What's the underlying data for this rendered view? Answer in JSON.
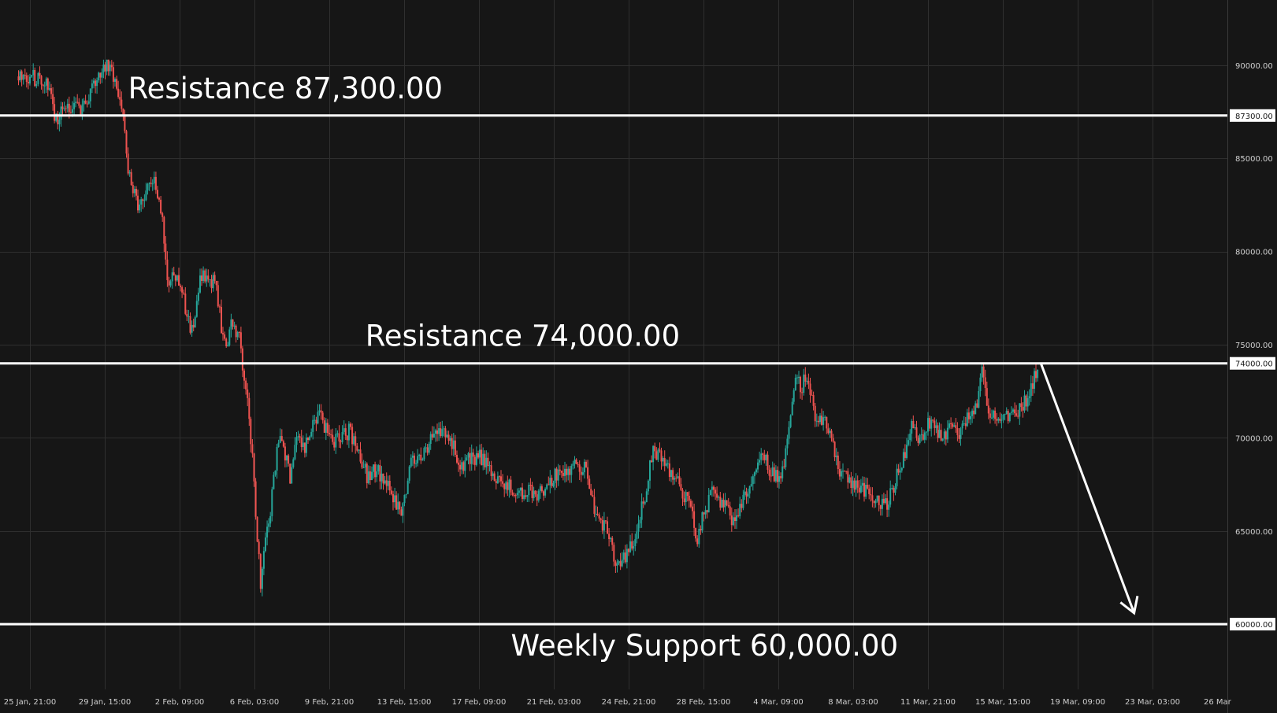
{
  "colors": {
    "background": "#161616",
    "grid": "#2f2f2f",
    "axis_text": "#cfcfcf",
    "up_candle": "#26a69a",
    "down_candle": "#ef5350",
    "level_line": "#ffffff",
    "arrow": "#ffffff"
  },
  "chart_data": {
    "type": "candlestick",
    "grid": true,
    "legend": "none",
    "ylim": [
      56500,
      93500
    ],
    "xlim": [
      "2024-01-25 21:00",
      "2024-03-26 21:00"
    ],
    "x_ticks": [
      "25 Jan, 21:00",
      "29 Jan, 15:00",
      "2 Feb, 09:00",
      "6 Feb, 03:00",
      "9 Feb, 21:00",
      "13 Feb, 15:00",
      "17 Feb, 09:00",
      "21 Feb, 03:00",
      "24 Feb, 21:00",
      "28 Feb, 15:00",
      "4 Mar, 09:00",
      "8 Mar, 03:00",
      "11 Mar, 21:00",
      "15 Mar, 15:00",
      "19 Mar, 09:00",
      "23 Mar, 03:00",
      "26 Mar"
    ],
    "y_ticks": [
      {
        "value": 90000,
        "label": "90000.00"
      },
      {
        "value": 85000,
        "label": "85000.00"
      },
      {
        "value": 80000,
        "label": "80000.00"
      },
      {
        "value": 75000,
        "label": "75000.00"
      },
      {
        "value": 70000,
        "label": "70000.00"
      },
      {
        "value": 65000,
        "label": "65000.00"
      }
    ],
    "levels": [
      {
        "value": 87300,
        "tag": "87300.00",
        "annotation": "Resistance 87,300.00",
        "annotation_at": "2024-01-30 21:00"
      },
      {
        "value": 74000,
        "tag": "74000.00",
        "annotation": "Resistance 74,000.00",
        "annotation_at": "2024-02-11 23:00"
      },
      {
        "value": 60000,
        "tag": "60000.00",
        "annotation": "Weekly Support 60,000.00",
        "annotation_at": "2024-02-19 09:00"
      }
    ],
    "price_path": [
      [
        "2024-01-25 21:00",
        89400
      ],
      [
        "2024-01-26 21:00",
        89000
      ],
      [
        "2024-01-27 03:00",
        86800
      ],
      [
        "2024-01-27 15:00",
        87900
      ],
      [
        "2024-01-28 12:00",
        87500
      ],
      [
        "2024-01-29 00:00",
        88600
      ],
      [
        "2024-01-29 12:00",
        89500
      ],
      [
        "2024-01-29 18:00",
        90200
      ],
      [
        "2024-01-30 06:00",
        89300
      ],
      [
        "2024-01-30 15:00",
        87600
      ],
      [
        "2024-01-30 21:00",
        84500
      ],
      [
        "2024-01-31 03:00",
        83300
      ],
      [
        "2024-01-31 12:00",
        82200
      ],
      [
        "2024-01-31 21:00",
        83800
      ],
      [
        "2024-02-01 06:00",
        83600
      ],
      [
        "2024-02-01 15:00",
        82000
      ],
      [
        "2024-02-01 21:00",
        78500
      ],
      [
        "2024-02-02 06:00",
        78800
      ],
      [
        "2024-02-02 15:00",
        77900
      ],
      [
        "2024-02-02 21:00",
        76600
      ],
      [
        "2024-02-03 03:00",
        75700
      ],
      [
        "2024-02-03 12:00",
        78300
      ],
      [
        "2024-02-03 21:00",
        78900
      ],
      [
        "2024-02-04 09:00",
        78000
      ],
      [
        "2024-02-04 15:00",
        76000
      ],
      [
        "2024-02-04 21:00",
        74500
      ],
      [
        "2024-02-05 03:00",
        76200
      ],
      [
        "2024-02-05 12:00",
        75600
      ],
      [
        "2024-02-05 18:00",
        73500
      ],
      [
        "2024-02-06 00:00",
        71500
      ],
      [
        "2024-02-06 06:00",
        68500
      ],
      [
        "2024-02-06 09:00",
        66000
      ],
      [
        "2024-02-06 15:00",
        62000
      ],
      [
        "2024-02-06 21:00",
        64500
      ],
      [
        "2024-02-07 03:00",
        66000
      ],
      [
        "2024-02-07 09:00",
        68500
      ],
      [
        "2024-02-07 15:00",
        70500
      ],
      [
        "2024-02-07 21:00",
        69000
      ],
      [
        "2024-02-08 03:00",
        68000
      ],
      [
        "2024-02-08 12:00",
        70000
      ],
      [
        "2024-02-08 21:00",
        69600
      ],
      [
        "2024-02-09 06:00",
        70600
      ],
      [
        "2024-02-09 15:00",
        71200
      ],
      [
        "2024-02-10 06:00",
        70000
      ],
      [
        "2024-02-10 15:00",
        69800
      ],
      [
        "2024-02-11 03:00",
        70400
      ],
      [
        "2024-02-11 15:00",
        69000
      ],
      [
        "2024-02-12 03:00",
        67800
      ],
      [
        "2024-02-12 12:00",
        68300
      ],
      [
        "2024-02-13 00:00",
        67500
      ],
      [
        "2024-02-13 12:00",
        66500
      ],
      [
        "2024-02-13 21:00",
        66200
      ],
      [
        "2024-02-14 06:00",
        68500
      ],
      [
        "2024-02-14 21:00",
        69000
      ],
      [
        "2024-02-15 09:00",
        70000
      ],
      [
        "2024-02-15 21:00",
        70400
      ],
      [
        "2024-02-16 09:00",
        69800
      ],
      [
        "2024-02-16 18:00",
        68500
      ],
      [
        "2024-02-17 06:00",
        68800
      ],
      [
        "2024-02-17 18:00",
        69000
      ],
      [
        "2024-02-18 06:00",
        68400
      ],
      [
        "2024-02-18 18:00",
        67800
      ],
      [
        "2024-02-19 06:00",
        67400
      ],
      [
        "2024-02-19 18:00",
        67000
      ],
      [
        "2024-02-20 06:00",
        67300
      ],
      [
        "2024-02-20 18:00",
        66800
      ],
      [
        "2024-02-21 06:00",
        67600
      ],
      [
        "2024-02-21 18:00",
        68200
      ],
      [
        "2024-02-22 06:00",
        68000
      ],
      [
        "2024-02-22 18:00",
        68600
      ],
      [
        "2024-02-23 06:00",
        68200
      ],
      [
        "2024-02-23 18:00",
        65500
      ],
      [
        "2024-02-24 06:00",
        65200
      ],
      [
        "2024-02-24 12:00",
        64200
      ],
      [
        "2024-02-24 18:00",
        63200
      ],
      [
        "2024-02-25 06:00",
        63500
      ],
      [
        "2024-02-25 18:00",
        65000
      ],
      [
        "2024-02-26 06:00",
        67000
      ],
      [
        "2024-02-26 15:00",
        69500
      ],
      [
        "2024-02-27 03:00",
        68600
      ],
      [
        "2024-02-27 15:00",
        68000
      ],
      [
        "2024-02-28 03:00",
        67000
      ],
      [
        "2024-02-28 15:00",
        66000
      ],
      [
        "2024-02-28 21:00",
        64300
      ],
      [
        "2024-02-29 03:00",
        65600
      ],
      [
        "2024-02-29 15:00",
        67200
      ],
      [
        "2024-03-01 03:00",
        66500
      ],
      [
        "2024-03-01 15:00",
        65700
      ],
      [
        "2024-03-02 03:00",
        66400
      ],
      [
        "2024-03-02 15:00",
        67800
      ],
      [
        "2024-03-03 03:00",
        69200
      ],
      [
        "2024-03-03 15:00",
        68200
      ],
      [
        "2024-03-04 03:00",
        67500
      ],
      [
        "2024-03-04 09:00",
        69500
      ],
      [
        "2024-03-04 15:00",
        71500
      ],
      [
        "2024-03-04 21:00",
        73200
      ],
      [
        "2024-03-05 03:00",
        72700
      ],
      [
        "2024-03-05 12:00",
        73400
      ],
      [
        "2024-03-05 21:00",
        71300
      ],
      [
        "2024-03-06 09:00",
        71000
      ],
      [
        "2024-03-06 18:00",
        70000
      ],
      [
        "2024-03-07 03:00",
        68200
      ],
      [
        "2024-03-07 15:00",
        67800
      ],
      [
        "2024-03-08 03:00",
        67500
      ],
      [
        "2024-03-08 15:00",
        67000
      ],
      [
        "2024-03-09 03:00",
        66700
      ],
      [
        "2024-03-09 12:00",
        66300
      ],
      [
        "2024-03-09 21:00",
        67500
      ],
      [
        "2024-03-10 09:00",
        69000
      ],
      [
        "2024-03-10 18:00",
        70600
      ],
      [
        "2024-03-11 06:00",
        70000
      ],
      [
        "2024-03-11 18:00",
        70900
      ],
      [
        "2024-03-12 06:00",
        70000
      ],
      [
        "2024-03-12 18:00",
        70500
      ],
      [
        "2024-03-13 06:00",
        70200
      ],
      [
        "2024-03-13 18:00",
        71300
      ],
      [
        "2024-03-14 03:00",
        72000
      ],
      [
        "2024-03-14 09:00",
        73400
      ],
      [
        "2024-03-14 18:00",
        71500
      ],
      [
        "2024-03-15 06:00",
        71000
      ],
      [
        "2024-03-15 18:00",
        71200
      ],
      [
        "2024-03-16 03:00",
        71500
      ],
      [
        "2024-03-16 15:00",
        72000
      ],
      [
        "2024-03-17 00:00",
        73200
      ],
      [
        "2024-03-17 06:00",
        74000
      ]
    ],
    "projection": {
      "from": [
        "2024-03-17 09:00",
        74000
      ],
      "to": [
        "2024-03-22 03:00",
        60600
      ]
    }
  }
}
